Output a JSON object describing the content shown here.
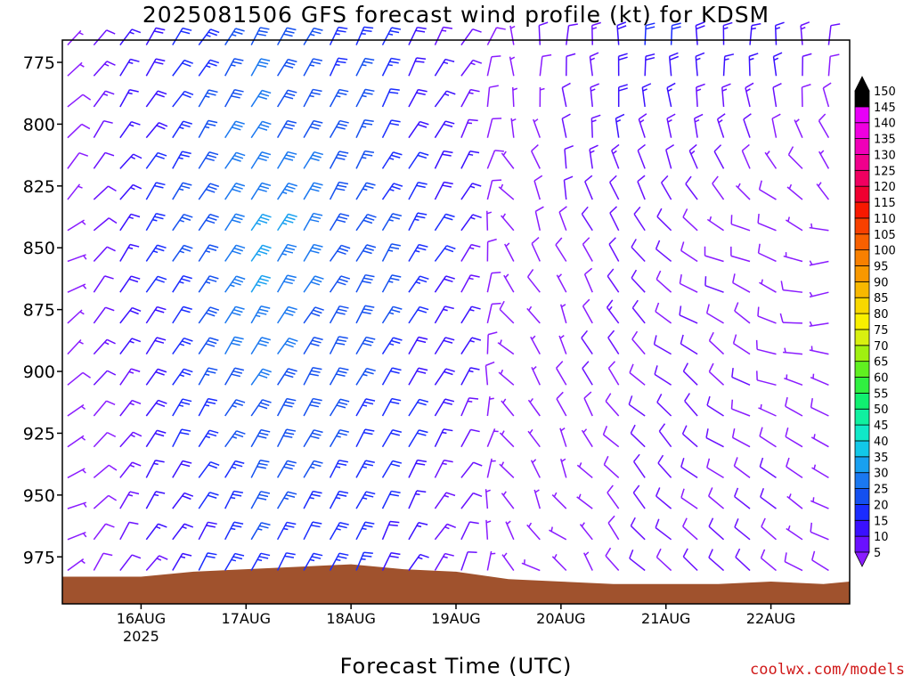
{
  "title": "2025081506 GFS forecast wind profile (kt) for KDSM",
  "xlabel": "Forecast Time (UTC)",
  "credit": "coolwx.com/models",
  "chart_data": {
    "type": "wind-barb",
    "title": "2025081506 GFS forecast wind profile (kt) for KDSM",
    "xlabel": "Forecast Time (UTC)",
    "ylabel": "",
    "x_ticks": [
      "16AUG",
      "17AUG",
      "18AUG",
      "19AUG",
      "20AUG",
      "21AUG",
      "22AUG"
    ],
    "x_year_label": "2025",
    "xlim_days": [
      15.25,
      22.75
    ],
    "y_ticks": [
      775,
      800,
      825,
      850,
      875,
      900,
      925,
      950,
      975
    ],
    "ylim_hpa": [
      994,
      766
    ],
    "colorbar": {
      "levels": [
        5,
        10,
        15,
        20,
        25,
        30,
        35,
        40,
        45,
        50,
        55,
        60,
        65,
        70,
        75,
        80,
        85,
        90,
        95,
        100,
        105,
        110,
        115,
        120,
        125,
        130,
        135,
        140,
        145,
        150
      ],
      "colors": [
        "#8a1cff",
        "#6a10ff",
        "#3a10ff",
        "#1a2cff",
        "#1450f0",
        "#1a78f0",
        "#18a0f0",
        "#12c8e8",
        "#10e8c8",
        "#10f0a0",
        "#10f070",
        "#30f040",
        "#60f020",
        "#a0f010",
        "#d8f010",
        "#f8f000",
        "#f8d800",
        "#f8b800",
        "#f89800",
        "#f88000",
        "#f86000",
        "#f84000",
        "#f81800",
        "#f00030",
        "#f00060",
        "#f0008c",
        "#f000b8",
        "#f000e0",
        "#e800f8",
        "#000000"
      ]
    },
    "fields": [
      {
        "name": "east-component",
        "unit": "kt",
        "x_ref_days": [
          15.25,
          16.0,
          17.0,
          18.0,
          19.0,
          19.5,
          20.0,
          20.5,
          21.0,
          22.0,
          22.75
        ],
        "y_ref_hpa": [
          775,
          850,
          975
        ],
        "grid": [
          [
            -5,
            -10,
            -15,
            -10,
            -7,
            0,
            0,
            0,
            0,
            0,
            0
          ],
          [
            -5,
            -12,
            -20,
            -15,
            -10,
            5,
            3,
            6,
            8,
            8,
            5
          ],
          [
            -4,
            -8,
            -12,
            -10,
            -6,
            3,
            2,
            6,
            8,
            8,
            5
          ]
        ]
      },
      {
        "name": "north-component",
        "unit": "kt",
        "x_ref_days": [
          15.25,
          16.0,
          17.0,
          18.0,
          19.0,
          19.5,
          20.0,
          20.5,
          21.0,
          22.0,
          22.75
        ],
        "y_ref_hpa": [
          775,
          850,
          975
        ],
        "grid": [
          [
            -5,
            -15,
            -25,
            -22,
            -12,
            -5,
            -12,
            -18,
            -20,
            -15,
            -10
          ],
          [
            -3,
            -18,
            -30,
            -25,
            -15,
            -5,
            -8,
            -10,
            -6,
            -2,
            2
          ],
          [
            -2,
            -12,
            -22,
            -20,
            -10,
            -3,
            -3,
            -6,
            -8,
            -6,
            -4
          ]
        ]
      }
    ],
    "terrain_hpa_by_day": [
      [
        15.25,
        983
      ],
      [
        16.0,
        983
      ],
      [
        16.5,
        981
      ],
      [
        17.0,
        980
      ],
      [
        17.5,
        979
      ],
      [
        18.0,
        978
      ],
      [
        18.5,
        980
      ],
      [
        19.0,
        981
      ],
      [
        19.5,
        984
      ],
      [
        20.0,
        985
      ],
      [
        20.5,
        986
      ],
      [
        21.0,
        986
      ],
      [
        21.5,
        986
      ],
      [
        22.0,
        985
      ],
      [
        22.5,
        986
      ],
      [
        22.75,
        985
      ]
    ],
    "terrain_color": "#a0522d",
    "time_step_hours": 6,
    "pressure_step_hpa": 12.5,
    "color_scale_unit": "kt"
  }
}
